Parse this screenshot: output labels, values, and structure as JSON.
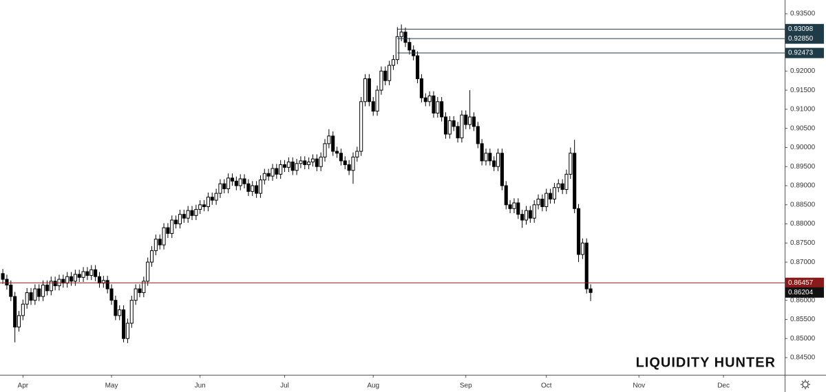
{
  "chart_data": {
    "type": "candlestick",
    "watermark": "LIQUIDITY HUNTER",
    "up_color": "#ffffff",
    "down_color": "#000000",
    "border_color": "#000000",
    "open": [
      0.867,
      0.8655,
      0.864,
      0.861,
      0.853,
      0.856,
      0.859,
      0.862,
      0.86,
      0.863,
      0.861,
      0.864,
      0.8625,
      0.865,
      0.8638,
      0.8655,
      0.8645,
      0.8662,
      0.865,
      0.8668,
      0.866,
      0.8675,
      0.8665,
      0.868,
      0.8662,
      0.8645,
      0.8652,
      0.863,
      0.86,
      0.856,
      0.8575,
      0.85,
      0.854,
      0.86,
      0.863,
      0.862,
      0.865,
      0.87,
      0.873,
      0.876,
      0.8745,
      0.879,
      0.8775,
      0.881,
      0.88,
      0.8825,
      0.8815,
      0.8835,
      0.8822,
      0.8838,
      0.885,
      0.8845,
      0.887,
      0.8862,
      0.888,
      0.8905,
      0.8892,
      0.892,
      0.8912,
      0.89,
      0.8918,
      0.8905,
      0.8885,
      0.89,
      0.888,
      0.8915,
      0.8932,
      0.8925,
      0.8945,
      0.893,
      0.8955,
      0.8948,
      0.8962,
      0.894,
      0.8958,
      0.8965,
      0.8955,
      0.8962,
      0.897,
      0.895,
      0.8975,
      0.901,
      0.903,
      0.899,
      0.8985,
      0.8965,
      0.8955,
      0.894,
      0.8975,
      0.899,
      0.912,
      0.918,
      0.912,
      0.9095,
      0.915,
      0.92,
      0.9175,
      0.9215,
      0.923,
      0.929,
      0.9302,
      0.9275,
      0.9255,
      0.924,
      0.918,
      0.913,
      0.912,
      0.9135,
      0.909,
      0.912,
      0.908,
      0.9035,
      0.907,
      0.9055,
      0.9025,
      0.9085,
      0.906,
      0.908,
      0.9055,
      0.901,
      0.8965,
      0.8985,
      0.8965,
      0.895,
      0.8985,
      0.89,
      0.885,
      0.884,
      0.8855,
      0.8825,
      0.881,
      0.8835,
      0.8815,
      0.885,
      0.8865,
      0.8845,
      0.888,
      0.8865,
      0.8895,
      0.8905,
      0.889,
      0.893,
      0.8985,
      0.884,
      0.872,
      0.875,
      0.863
    ],
    "high": [
      0.8682,
      0.8667,
      0.8652,
      0.8622,
      0.8572,
      0.8602,
      0.8632,
      0.8632,
      0.8642,
      0.8642,
      0.8652,
      0.8652,
      0.8662,
      0.8662,
      0.8667,
      0.8667,
      0.8674,
      0.8674,
      0.868,
      0.868,
      0.8687,
      0.8687,
      0.8692,
      0.8692,
      0.8674,
      0.8664,
      0.8664,
      0.8642,
      0.8612,
      0.8587,
      0.8587,
      0.8552,
      0.8612,
      0.8642,
      0.8642,
      0.8662,
      0.8712,
      0.8742,
      0.8772,
      0.8772,
      0.8802,
      0.8802,
      0.8822,
      0.8822,
      0.8837,
      0.8837,
      0.8847,
      0.8847,
      0.885,
      0.8862,
      0.8862,
      0.8882,
      0.8882,
      0.8892,
      0.8917,
      0.8917,
      0.8932,
      0.8932,
      0.8924,
      0.893,
      0.893,
      0.8917,
      0.8912,
      0.8912,
      0.8927,
      0.8944,
      0.8944,
      0.8957,
      0.8957,
      0.8967,
      0.8967,
      0.8974,
      0.8974,
      0.897,
      0.8977,
      0.8977,
      0.8974,
      0.8982,
      0.8982,
      0.8987,
      0.9022,
      0.9048,
      0.9042,
      0.9002,
      0.8997,
      0.8977,
      0.8967,
      0.8987,
      0.9002,
      0.9132,
      0.9192,
      0.9192,
      0.9132,
      0.9162,
      0.9212,
      0.9212,
      0.9227,
      0.9242,
      0.9315,
      0.9322,
      0.9314,
      0.9287,
      0.9267,
      0.9252,
      0.9192,
      0.9142,
      0.9147,
      0.9147,
      0.9132,
      0.9132,
      0.9092,
      0.9082,
      0.9082,
      0.9067,
      0.9097,
      0.9097,
      0.915,
      0.9092,
      0.9067,
      0.9022,
      0.8997,
      0.8997,
      0.8977,
      0.8997,
      0.8997,
      0.8912,
      0.8862,
      0.8867,
      0.8867,
      0.8837,
      0.8847,
      0.8847,
      0.8862,
      0.8877,
      0.8877,
      0.8892,
      0.8892,
      0.8907,
      0.8917,
      0.8917,
      0.8942,
      0.9,
      0.902,
      0.8852,
      0.8762,
      0.8762,
      0.8642
    ],
    "low": [
      0.8643,
      0.8628,
      0.8598,
      0.849,
      0.8518,
      0.8548,
      0.8578,
      0.8588,
      0.8588,
      0.8598,
      0.8598,
      0.8613,
      0.8613,
      0.8626,
      0.8626,
      0.8633,
      0.8633,
      0.8638,
      0.8638,
      0.8648,
      0.8648,
      0.8653,
      0.8653,
      0.865,
      0.8633,
      0.8633,
      0.8618,
      0.8588,
      0.8548,
      0.8548,
      0.849,
      0.8488,
      0.8528,
      0.8588,
      0.8608,
      0.8608,
      0.8638,
      0.8688,
      0.8718,
      0.8733,
      0.8733,
      0.8763,
      0.8763,
      0.8788,
      0.8788,
      0.8803,
      0.8803,
      0.881,
      0.881,
      0.8826,
      0.8833,
      0.8833,
      0.885,
      0.885,
      0.8868,
      0.888,
      0.888,
      0.89,
      0.8888,
      0.8888,
      0.8893,
      0.8873,
      0.8873,
      0.8868,
      0.8868,
      0.8903,
      0.8913,
      0.8913,
      0.8918,
      0.8918,
      0.8936,
      0.8936,
      0.8928,
      0.8928,
      0.8946,
      0.8943,
      0.8943,
      0.895,
      0.8938,
      0.8938,
      0.8963,
      0.8998,
      0.8978,
      0.8973,
      0.8953,
      0.8943,
      0.8928,
      0.8905,
      0.8963,
      0.8978,
      0.9108,
      0.9108,
      0.9083,
      0.9083,
      0.9138,
      0.9163,
      0.9163,
      0.9203,
      0.9218,
      0.9278,
      0.9263,
      0.9243,
      0.9228,
      0.9168,
      0.9118,
      0.9108,
      0.9108,
      0.9078,
      0.9078,
      0.9068,
      0.9023,
      0.9023,
      0.9043,
      0.9013,
      0.9013,
      0.9048,
      0.9048,
      0.9043,
      0.8998,
      0.8953,
      0.8953,
      0.8953,
      0.8938,
      0.8938,
      0.8888,
      0.8838,
      0.8828,
      0.8828,
      0.8813,
      0.879,
      0.8798,
      0.8803,
      0.8803,
      0.8838,
      0.8833,
      0.8833,
      0.8853,
      0.8853,
      0.8883,
      0.8878,
      0.8878,
      0.8918,
      0.8828,
      0.87,
      0.8708,
      0.8618,
      0.8598
    ],
    "close": [
      0.8655,
      0.864,
      0.861,
      0.853,
      0.856,
      0.859,
      0.862,
      0.86,
      0.863,
      0.861,
      0.864,
      0.8625,
      0.865,
      0.8638,
      0.8655,
      0.8645,
      0.8662,
      0.865,
      0.8668,
      0.866,
      0.8675,
      0.8665,
      0.868,
      0.8662,
      0.8645,
      0.8652,
      0.863,
      0.86,
      0.856,
      0.8575,
      0.85,
      0.854,
      0.86,
      0.863,
      0.862,
      0.865,
      0.87,
      0.873,
      0.876,
      0.8745,
      0.879,
      0.8775,
      0.881,
      0.88,
      0.8825,
      0.8815,
      0.8835,
      0.8822,
      0.8838,
      0.885,
      0.8845,
      0.887,
      0.8862,
      0.888,
      0.8905,
      0.8892,
      0.892,
      0.8912,
      0.89,
      0.8918,
      0.8905,
      0.8885,
      0.89,
      0.888,
      0.8915,
      0.8932,
      0.8925,
      0.8945,
      0.893,
      0.8955,
      0.8948,
      0.8962,
      0.894,
      0.8958,
      0.8965,
      0.8955,
      0.8962,
      0.897,
      0.895,
      0.8975,
      0.901,
      0.903,
      0.899,
      0.8985,
      0.8965,
      0.8955,
      0.894,
      0.8975,
      0.899,
      0.912,
      0.918,
      0.912,
      0.9095,
      0.915,
      0.92,
      0.9175,
      0.9215,
      0.923,
      0.929,
      0.9302,
      0.9275,
      0.9255,
      0.924,
      0.918,
      0.913,
      0.912,
      0.9135,
      0.909,
      0.912,
      0.908,
      0.9035,
      0.907,
      0.9055,
      0.9025,
      0.9085,
      0.906,
      0.908,
      0.9055,
      0.901,
      0.8965,
      0.8985,
      0.8965,
      0.895,
      0.8985,
      0.89,
      0.885,
      0.884,
      0.8855,
      0.8825,
      0.881,
      0.8835,
      0.8815,
      0.885,
      0.8865,
      0.8845,
      0.888,
      0.8865,
      0.8895,
      0.8905,
      0.889,
      0.893,
      0.8985,
      0.884,
      0.872,
      0.875,
      0.863,
      0.86204
    ],
    "xlim": [
      -0.7,
      194.2
    ],
    "xticks": [
      {
        "value": 5,
        "label": "Apr"
      },
      {
        "value": 27,
        "label": "May"
      },
      {
        "value": 49,
        "label": "Jun"
      },
      {
        "value": 70,
        "label": "Jul"
      },
      {
        "value": 92,
        "label": "Aug"
      },
      {
        "value": 115,
        "label": "Sep"
      },
      {
        "value": 135,
        "label": "Oct"
      },
      {
        "value": 158,
        "label": "Nov"
      },
      {
        "value": 179,
        "label": "Dec"
      }
    ],
    "ylim": [
      0.8405,
      0.9386
    ],
    "yticks": [
      {
        "value": 0.845,
        "label": "0.84500"
      },
      {
        "value": 0.85,
        "label": "0.85000"
      },
      {
        "value": 0.855,
        "label": "0.85500"
      },
      {
        "value": 0.86,
        "label": "0.86000"
      },
      {
        "value": 0.865,
        "label": "0.86500"
      },
      {
        "value": 0.87,
        "label": "0.87000"
      },
      {
        "value": 0.875,
        "label": "0.87500"
      },
      {
        "value": 0.88,
        "label": "0.88000"
      },
      {
        "value": 0.885,
        "label": "0.88500"
      },
      {
        "value": 0.89,
        "label": "0.89000"
      },
      {
        "value": 0.895,
        "label": "0.89500"
      },
      {
        "value": 0.9,
        "label": "0.90000"
      },
      {
        "value": 0.905,
        "label": "0.90500"
      },
      {
        "value": 0.91,
        "label": "0.91000"
      },
      {
        "value": 0.915,
        "label": "0.91500"
      },
      {
        "value": 0.92,
        "label": "0.92000"
      },
      {
        "value": 0.925,
        "label": "0.92500"
      },
      {
        "value": 0.93,
        "label": "0.93000"
      },
      {
        "value": 0.935,
        "label": "0.93500"
      }
    ],
    "levels": [
      {
        "value": 0.93098,
        "label": "0.93098",
        "color": "#1f3b47"
      },
      {
        "value": 0.9285,
        "label": "0.92850",
        "color": "#1f3b47"
      },
      {
        "value": 0.92473,
        "label": "0.92473",
        "color": "#1f3b47"
      },
      {
        "value": 0.86457,
        "label": "0.86457",
        "color": "#8b1a1a"
      }
    ],
    "last_price": {
      "value": 0.86204,
      "label": "0.86204",
      "color": "#111111"
    }
  }
}
